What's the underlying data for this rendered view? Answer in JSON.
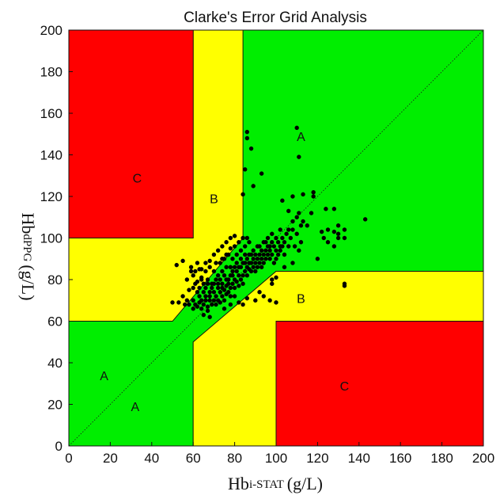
{
  "colors": {
    "zone_a": "#00ee00",
    "zone_b": "#ffff00",
    "zone_c": "#ff0000",
    "points": "#000000"
  },
  "chart_data": {
    "type": "scatter",
    "title": "Clarke's Error Grid Analysis",
    "xlabel_main": "Hb",
    "xlabel_sub": "i-STAT",
    "xlabel_unit": "(g/L)",
    "ylabel_main": "Hb",
    "ylabel_sub": "dPPG",
    "ylabel_unit": "(g/L)",
    "xlim": [
      0,
      200
    ],
    "ylim": [
      0,
      200
    ],
    "xticks": [
      "0",
      "20",
      "40",
      "60",
      "80",
      "100",
      "120",
      "140",
      "160",
      "180",
      "200"
    ],
    "yticks": [
      "0",
      "20",
      "40",
      "60",
      "80",
      "100",
      "120",
      "140",
      "160",
      "180",
      "200"
    ],
    "diagonal": "dotted y = x reference line",
    "zones": [
      {
        "label": "A",
        "color": "zone_a",
        "polygon": [
          [
            0,
            0
          ],
          [
            60,
            0
          ],
          [
            60,
            50
          ],
          [
            100,
            84
          ],
          [
            200,
            84
          ],
          [
            200,
            200
          ],
          [
            84,
            200
          ],
          [
            84,
            100
          ],
          [
            50,
            60
          ],
          [
            0,
            60
          ]
        ]
      },
      {
        "label": "B",
        "color": "zone_b",
        "polygon": [
          [
            0,
            60
          ],
          [
            50,
            60
          ],
          [
            84,
            100
          ],
          [
            84,
            200
          ],
          [
            60,
            200
          ],
          [
            60,
            100
          ],
          [
            0,
            100
          ]
        ]
      },
      {
        "label": "B",
        "color": "zone_b",
        "polygon": [
          [
            60,
            0
          ],
          [
            100,
            0
          ],
          [
            100,
            60
          ],
          [
            200,
            60
          ],
          [
            200,
            84
          ],
          [
            100,
            84
          ],
          [
            60,
            50
          ]
        ]
      },
      {
        "label": "C",
        "color": "zone_c",
        "polygon": [
          [
            0,
            100
          ],
          [
            60,
            100
          ],
          [
            60,
            200
          ],
          [
            0,
            200
          ]
        ]
      },
      {
        "label": "C",
        "color": "zone_c",
        "polygon": [
          [
            100,
            0
          ],
          [
            200,
            0
          ],
          [
            200,
            60
          ],
          [
            100,
            60
          ]
        ]
      }
    ],
    "zone_labels": [
      {
        "text": "A",
        "x": 112,
        "y": 149
      },
      {
        "text": "A",
        "x": 17,
        "y": 34
      },
      {
        "text": "A",
        "x": 32,
        "y": 19
      },
      {
        "text": "B",
        "x": 70,
        "y": 119
      },
      {
        "text": "B",
        "x": 112,
        "y": 71
      },
      {
        "text": "C",
        "x": 33,
        "y": 129
      },
      {
        "text": "C",
        "x": 133,
        "y": 29
      }
    ],
    "points": [
      [
        52,
        87
      ],
      [
        55,
        89
      ],
      [
        50,
        69
      ],
      [
        53,
        69
      ],
      [
        56,
        68
      ],
      [
        57,
        70
      ],
      [
        55,
        72
      ],
      [
        58,
        68
      ],
      [
        60,
        66
      ],
      [
        60,
        70
      ],
      [
        61,
        68
      ],
      [
        62,
        67
      ],
      [
        63,
        69
      ],
      [
        63,
        72
      ],
      [
        64,
        70
      ],
      [
        64,
        66
      ],
      [
        65,
        68
      ],
      [
        65,
        63
      ],
      [
        66,
        70
      ],
      [
        66,
        72
      ],
      [
        67,
        67
      ],
      [
        67,
        65
      ],
      [
        68,
        70
      ],
      [
        68,
        72
      ],
      [
        68,
        62
      ],
      [
        69,
        68
      ],
      [
        70,
        70
      ],
      [
        70,
        74
      ],
      [
        71,
        68
      ],
      [
        71,
        72
      ],
      [
        72,
        76
      ],
      [
        72,
        70
      ],
      [
        73,
        69
      ],
      [
        73,
        74
      ],
      [
        74,
        72
      ],
      [
        74,
        78
      ],
      [
        75,
        70
      ],
      [
        75,
        75
      ],
      [
        76,
        73
      ],
      [
        76,
        77
      ],
      [
        77,
        74
      ],
      [
        77,
        80
      ],
      [
        78,
        76
      ],
      [
        78,
        72
      ],
      [
        79,
        78
      ],
      [
        79,
        82
      ],
      [
        80,
        76
      ],
      [
        80,
        80
      ],
      [
        81,
        79
      ],
      [
        81,
        84
      ],
      [
        82,
        77
      ],
      [
        82,
        82
      ],
      [
        83,
        80
      ],
      [
        83,
        86
      ],
      [
        84,
        82
      ],
      [
        84,
        78
      ],
      [
        85,
        84
      ],
      [
        85,
        88
      ],
      [
        86,
        82
      ],
      [
        86,
        90
      ],
      [
        87,
        85
      ],
      [
        87,
        92
      ],
      [
        88,
        84
      ],
      [
        88,
        88
      ],
      [
        89,
        86
      ],
      [
        89,
        94
      ],
      [
        90,
        88
      ],
      [
        90,
        84
      ],
      [
        91,
        90
      ],
      [
        91,
        96
      ],
      [
        92,
        88
      ],
      [
        92,
        92
      ],
      [
        93,
        90
      ],
      [
        93,
        86
      ],
      [
        94,
        92
      ],
      [
        94,
        98
      ],
      [
        95,
        90
      ],
      [
        95,
        94
      ],
      [
        96,
        92
      ],
      [
        96,
        100
      ],
      [
        97,
        94
      ],
      [
        97,
        96
      ],
      [
        98,
        92
      ],
      [
        98,
        102
      ],
      [
        99,
        96
      ],
      [
        100,
        100
      ],
      [
        100,
        94
      ],
      [
        101,
        98
      ],
      [
        102,
        96
      ],
      [
        102,
        104
      ],
      [
        103,
        100
      ],
      [
        104,
        98
      ],
      [
        105,
        102
      ],
      [
        106,
        96
      ],
      [
        107,
        100
      ],
      [
        108,
        104
      ],
      [
        109,
        96
      ],
      [
        110,
        102
      ],
      [
        111,
        94
      ],
      [
        112,
        98
      ],
      [
        59,
        86
      ],
      [
        60,
        82
      ],
      [
        61,
        84
      ],
      [
        62,
        79
      ],
      [
        63,
        85
      ],
      [
        64,
        81
      ],
      [
        65,
        78
      ],
      [
        66,
        84
      ],
      [
        67,
        80
      ],
      [
        68,
        86
      ],
      [
        69,
        78
      ],
      [
        70,
        84
      ],
      [
        71,
        88
      ],
      [
        72,
        82
      ],
      [
        73,
        88
      ],
      [
        74,
        84
      ],
      [
        75,
        90
      ],
      [
        76,
        86
      ],
      [
        77,
        92
      ],
      [
        78,
        86
      ],
      [
        79,
        90
      ],
      [
        80,
        96
      ],
      [
        81,
        92
      ],
      [
        82,
        98
      ],
      [
        83,
        94
      ],
      [
        84,
        100
      ],
      [
        85,
        96
      ],
      [
        86,
        100
      ],
      [
        87,
        98
      ],
      [
        60,
        76
      ],
      [
        61,
        78
      ],
      [
        62,
        74
      ],
      [
        63,
        76
      ],
      [
        64,
        80
      ],
      [
        65,
        74
      ],
      [
        66,
        76
      ],
      [
        67,
        78
      ],
      [
        68,
        74
      ],
      [
        69,
        76
      ],
      [
        70,
        78
      ],
      [
        71,
        80
      ],
      [
        72,
        78
      ],
      [
        73,
        80
      ],
      [
        74,
        76
      ],
      [
        75,
        82
      ],
      [
        76,
        80
      ],
      [
        77,
        78
      ],
      [
        78,
        82
      ],
      [
        79,
        84
      ],
      [
        80,
        86
      ],
      [
        81,
        88
      ],
      [
        82,
        86
      ],
      [
        83,
        90
      ],
      [
        84,
        88
      ],
      [
        85,
        92
      ],
      [
        86,
        86
      ],
      [
        87,
        88
      ],
      [
        88,
        92
      ],
      [
        89,
        90
      ],
      [
        90,
        92
      ],
      [
        91,
        86
      ],
      [
        92,
        96
      ],
      [
        93,
        94
      ],
      [
        94,
        88
      ],
      [
        95,
        98
      ],
      [
        96,
        96
      ],
      [
        97,
        90
      ],
      [
        98,
        98
      ],
      [
        99,
        88
      ],
      [
        100,
        90
      ],
      [
        101,
        92
      ],
      [
        102,
        94
      ],
      [
        103,
        96
      ],
      [
        104,
        92
      ],
      [
        106,
        104
      ],
      [
        108,
        108
      ],
      [
        110,
        110
      ],
      [
        111,
        112
      ],
      [
        112,
        106
      ],
      [
        86,
        151
      ],
      [
        86,
        148
      ],
      [
        88,
        143
      ],
      [
        110,
        153
      ],
      [
        111,
        139
      ],
      [
        85,
        133
      ],
      [
        89,
        125
      ],
      [
        93,
        131
      ],
      [
        84,
        121
      ],
      [
        103,
        118
      ],
      [
        106,
        113
      ],
      [
        108,
        120
      ],
      [
        113,
        121
      ],
      [
        118,
        122
      ],
      [
        118,
        120
      ],
      [
        122,
        103
      ],
      [
        123,
        100
      ],
      [
        125,
        104
      ],
      [
        125,
        98
      ],
      [
        128,
        103
      ],
      [
        128,
        96
      ],
      [
        130,
        102
      ],
      [
        130,
        100
      ],
      [
        130,
        106
      ],
      [
        133,
        104
      ],
      [
        133,
        100
      ],
      [
        133,
        78
      ],
      [
        133,
        77
      ],
      [
        143,
        109
      ],
      [
        113,
        108
      ],
      [
        115,
        106
      ],
      [
        117,
        112
      ],
      [
        120,
        90
      ],
      [
        124,
        114
      ],
      [
        128,
        114
      ],
      [
        98,
        80
      ],
      [
        98,
        78
      ],
      [
        100,
        81
      ],
      [
        104,
        86
      ],
      [
        108,
        88
      ],
      [
        97,
        70
      ],
      [
        100,
        69
      ],
      [
        94,
        72
      ],
      [
        92,
        74
      ],
      [
        90,
        70
      ],
      [
        86,
        71
      ],
      [
        84,
        68
      ],
      [
        82,
        69
      ],
      [
        80,
        72
      ],
      [
        78,
        68
      ],
      [
        75,
        66
      ],
      [
        58,
        75
      ],
      [
        57,
        80
      ],
      [
        59,
        84
      ],
      [
        62,
        88
      ],
      [
        64,
        85
      ],
      [
        66,
        88
      ],
      [
        68,
        89
      ],
      [
        70,
        92
      ],
      [
        72,
        94
      ],
      [
        74,
        96
      ],
      [
        76,
        98
      ],
      [
        78,
        100
      ],
      [
        80,
        101
      ],
      [
        78,
        95
      ],
      [
        76,
        92
      ],
      [
        74,
        90
      ]
    ]
  }
}
